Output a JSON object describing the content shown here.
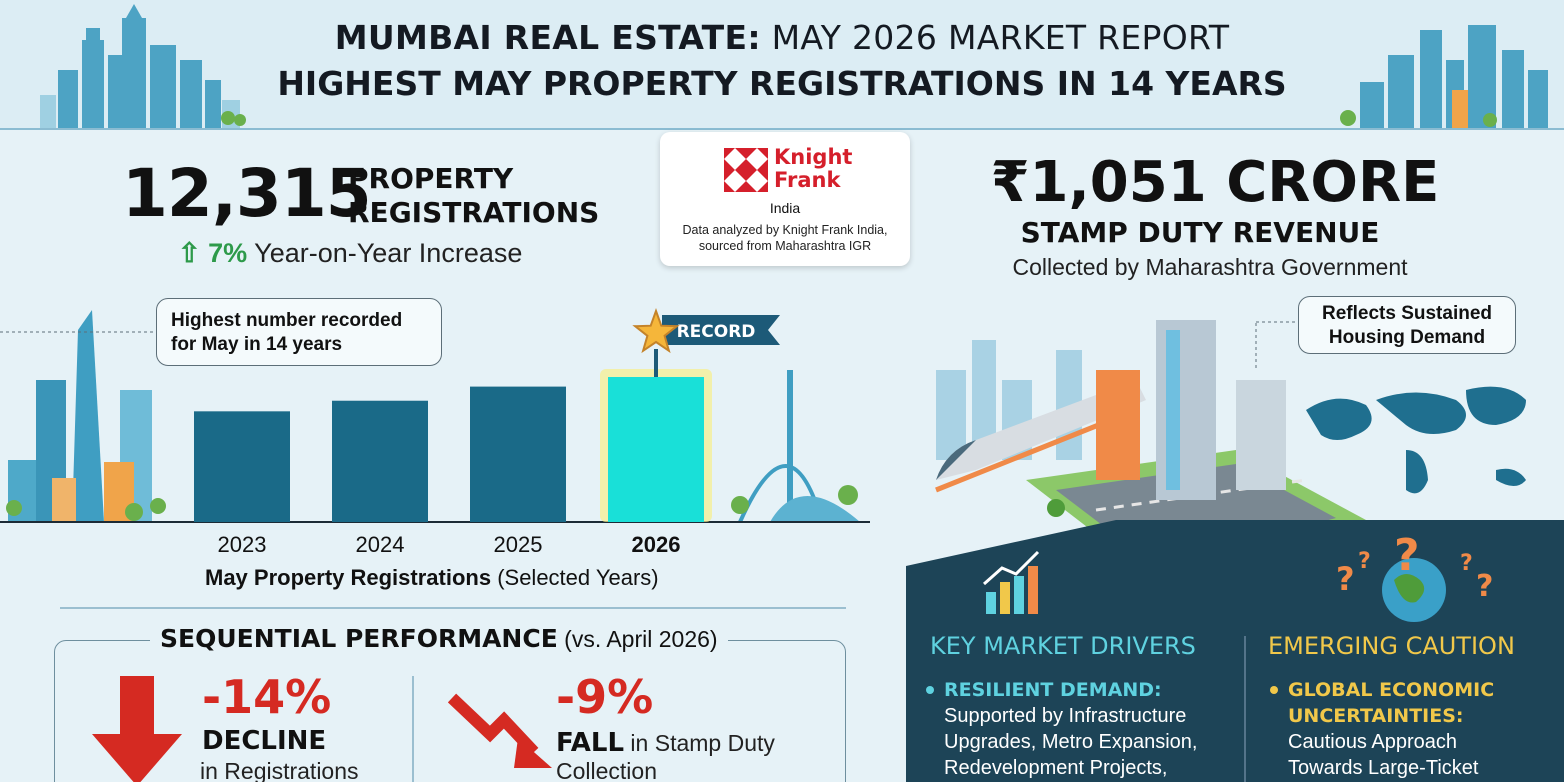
{
  "header": {
    "title_bold": "MUMBAI REAL ESTATE:",
    "title_rest": " MAY 2026 MARKET REPORT",
    "subtitle": "HIGHEST MAY PROPERTY REGISTRATIONS IN 14 YEARS"
  },
  "registrations": {
    "count": "12,315",
    "label_line1": "PROPERTY",
    "label_line2": "REGISTRATIONS",
    "arrow_icon": "up-arrow-icon",
    "yoy_pct": "7%",
    "yoy_text": " Year-on-Year Increase",
    "callout_line1": "Highest number recorded",
    "callout_line2": "for May in 14 years"
  },
  "source": {
    "brand_line1": "Knight",
    "brand_line2": "Frank",
    "brand_region": "India",
    "note_line1": "Data analyzed by Knight Frank India,",
    "note_line2": "sourced from Maharashtra IGR"
  },
  "stamp_duty": {
    "amount": "₹1,051 CRORE",
    "label": "STAMP DUTY REVENUE",
    "sub": "Collected by Maharashtra Government",
    "callout_line1": "Reflects Sustained",
    "callout_line2": "Housing Demand"
  },
  "chart_data": {
    "type": "bar",
    "categories": [
      "2023",
      "2024",
      "2025",
      "2026"
    ],
    "values": [
      9400,
      10300,
      11500,
      12315
    ],
    "highlight": "2026",
    "badge": "RECORD",
    "title": "May Property Registrations",
    "title_suffix": " (Selected Years)",
    "colors": {
      "bar": "#1a6a88",
      "highlight": "#19e0d8",
      "badge": "#1d5a78"
    }
  },
  "sequential": {
    "title": "SEQUENTIAL PERFORMANCE",
    "title_suffix": " (vs. April 2026)",
    "reg_pct": "-14%",
    "reg_word": "DECLINE",
    "reg_desc": "in Registrations",
    "stamp_pct": "-9%",
    "stamp_word": "FALL",
    "stamp_desc_1": " in Stamp Duty",
    "stamp_desc_2": "Collection"
  },
  "drivers": {
    "heading": "KEY MARKET DRIVERS",
    "item_title": "RESILIENT DEMAND:",
    "item_line1": "Supported by Infrastructure",
    "item_line2": "Upgrades, Metro Expansion,",
    "item_line3": "Redevelopment Projects,"
  },
  "caution": {
    "heading": "EMERGING CAUTION",
    "item_title_1": "GLOBAL ECONOMIC",
    "item_title_2": "UNCERTAINTIES:",
    "item_line1": "Cautious Approach",
    "item_line2": "Towards Large-Ticket"
  }
}
